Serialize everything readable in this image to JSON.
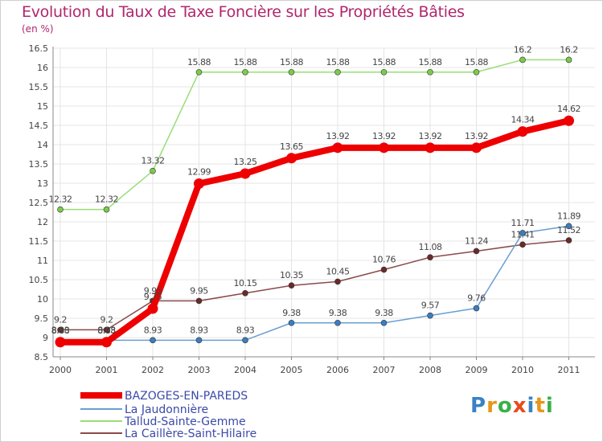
{
  "title": "Evolution du Taux de Taxe Foncière sur les Propriétés Bâties",
  "unit_label": "(en %)",
  "logo": {
    "letters": [
      "P",
      "r",
      "o",
      "x",
      "i",
      "t",
      "i"
    ],
    "colors": [
      "#3a82c4",
      "#e8961a",
      "#3ab04a",
      "#e84a1a",
      "#3a82c4",
      "#e8961a",
      "#3ab04a"
    ]
  },
  "chart_data": {
    "type": "line",
    "title": "Evolution du Taux de Taxe Foncière sur les Propriétés Bâties",
    "ylabel": "(en %)",
    "xlabel": "",
    "ylim": [
      8.5,
      16.5
    ],
    "grid": true,
    "y_ticks": [
      "8.5",
      "9",
      "9.5",
      "10",
      "10.5",
      "11",
      "11.5",
      "12",
      "12.5",
      "13",
      "13.5",
      "14",
      "14.5",
      "15",
      "15.5",
      "16",
      "16.5"
    ],
    "x": [
      "2000",
      "2001",
      "2002",
      "2003",
      "2004",
      "2005",
      "2006",
      "2007",
      "2008",
      "2009",
      "2010",
      "2011"
    ],
    "series": [
      {
        "name": "BAZOGES-EN-PAREDS",
        "color": "#ee0000",
        "values": [
          8.88,
          8.88,
          9.75,
          12.99,
          13.25,
          13.65,
          13.92,
          13.92,
          13.92,
          13.92,
          14.34,
          14.62
        ],
        "labels": [
          "8.88",
          "8.88",
          "9.75",
          "12.99",
          "13.25",
          "13.65",
          "13.92",
          "13.92",
          "13.92",
          "13.92",
          "14.34",
          "14.62"
        ]
      },
      {
        "name": "La Jaudonnière",
        "color": "#6a9ed0",
        "values": [
          8.93,
          8.93,
          8.93,
          8.93,
          8.93,
          9.38,
          9.38,
          9.38,
          9.57,
          9.76,
          11.71,
          11.89
        ],
        "labels": [
          "8.93",
          "8.93",
          "8.93",
          "8.93",
          "8.93",
          "9.38",
          "9.38",
          "9.38",
          "9.57",
          "9.76",
          "11.71",
          "11.89"
        ]
      },
      {
        "name": "Tallud-Sainte-Gemme",
        "color": "#99dd77",
        "values": [
          12.32,
          12.32,
          13.32,
          15.88,
          15.88,
          15.88,
          15.88,
          15.88,
          15.88,
          15.88,
          16.2,
          16.2
        ],
        "labels": [
          "12.32",
          "12.32",
          "13.32",
          "15.88",
          "15.88",
          "15.88",
          "15.88",
          "15.88",
          "15.88",
          "15.88",
          "16.2",
          "16.2"
        ]
      },
      {
        "name": "La Caillère-Saint-Hilaire",
        "color": "#8a4a4a",
        "values": [
          9.2,
          9.2,
          9.95,
          9.95,
          10.15,
          10.35,
          10.45,
          10.76,
          11.08,
          11.24,
          11.41,
          11.52
        ],
        "labels": [
          "9.2",
          "9.2",
          "9.95",
          "9.95",
          "10.15",
          "10.35",
          "10.45",
          "10.76",
          "11.08",
          "11.24",
          "11.41",
          "11.52"
        ]
      }
    ]
  }
}
